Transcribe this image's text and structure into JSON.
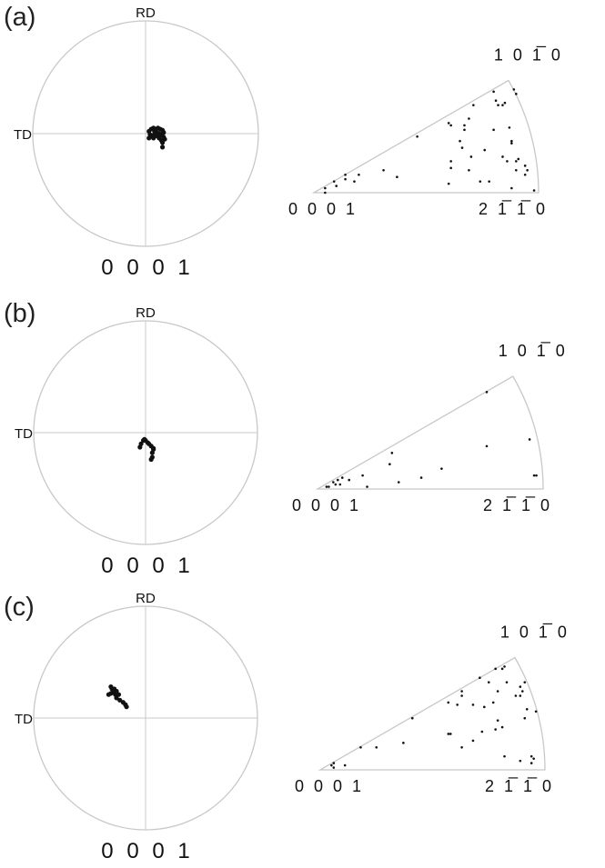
{
  "panels": [
    {
      "label": "(a)",
      "pole_figure": {
        "rd_label": "RD",
        "td_label": "TD",
        "pole_label": "0 0 0 1",
        "points": [
          [
            0.03,
            0.02
          ],
          [
            0.05,
            0.04
          ],
          [
            0.07,
            0.05
          ],
          [
            0.09,
            0.04
          ],
          [
            0.11,
            0.05
          ],
          [
            0.13,
            0.04
          ],
          [
            0.15,
            0.03
          ],
          [
            0.16,
            0.01
          ],
          [
            0.04,
            -0.01
          ],
          [
            0.06,
            -0.02
          ],
          [
            0.08,
            0.0
          ],
          [
            0.1,
            0.01
          ],
          [
            0.12,
            0.0
          ],
          [
            0.14,
            -0.01
          ],
          [
            0.16,
            -0.03
          ],
          [
            0.17,
            -0.05
          ],
          [
            0.03,
            -0.04
          ],
          [
            0.07,
            -0.04
          ],
          [
            0.12,
            -0.04
          ],
          [
            0.14,
            -0.06
          ],
          [
            0.15,
            -0.08
          ],
          [
            0.08,
            0.02
          ],
          [
            0.1,
            -0.02
          ],
          [
            0.15,
            -0.12
          ]
        ]
      },
      "ipf": {
        "apex_label": "0 0 0 1",
        "right_label": "2 1̅ 1̅ 0",
        "top_label": "1 0 1̅ 0",
        "points": [
          [
            0.8,
            0.45
          ],
          [
            0.89,
            0.46
          ],
          [
            0.9,
            0.44
          ],
          [
            0.81,
            0.41
          ],
          [
            0.82,
            0.39
          ],
          [
            0.84,
            0.39
          ],
          [
            0.85,
            0.4
          ],
          [
            0.71,
            0.39
          ],
          [
            0.69,
            0.33
          ],
          [
            0.67,
            0.3
          ],
          [
            0.67,
            0.28
          ],
          [
            0.6,
            0.31
          ],
          [
            0.61,
            0.3
          ],
          [
            0.46,
            0.25
          ],
          [
            0.87,
            0.29
          ],
          [
            0.8,
            0.28
          ],
          [
            0.65,
            0.23
          ],
          [
            0.66,
            0.2
          ],
          [
            0.76,
            0.19
          ],
          [
            0.88,
            0.23
          ],
          [
            0.88,
            0.22
          ],
          [
            0.84,
            0.16
          ],
          [
            0.86,
            0.14
          ],
          [
            0.9,
            0.14
          ],
          [
            0.91,
            0.15
          ],
          [
            0.7,
            0.16
          ],
          [
            0.61,
            0.14
          ],
          [
            0.61,
            0.11
          ],
          [
            0.69,
            0.1
          ],
          [
            0.94,
            0.12
          ],
          [
            0.95,
            0.1
          ],
          [
            0.94,
            0.08
          ],
          [
            0.9,
            0.1
          ],
          [
            0.31,
            0.1
          ],
          [
            0.37,
            0.07
          ],
          [
            0.2,
            0.08
          ],
          [
            0.14,
            0.08
          ],
          [
            0.14,
            0.06
          ],
          [
            0.18,
            0.05
          ],
          [
            0.09,
            0.05
          ],
          [
            0.1,
            0.03
          ],
          [
            0.05,
            0.02
          ],
          [
            0.05,
            0.0
          ],
          [
            0.6,
            0.04
          ],
          [
            0.74,
            0.05
          ],
          [
            0.78,
            0.05
          ],
          [
            0.88,
            0.02
          ],
          [
            0.98,
            0.01
          ]
        ]
      }
    },
    {
      "label": "(b)",
      "pole_figure": {
        "rd_label": "RD",
        "td_label": "TD",
        "pole_label": "0 0 0 1",
        "points": [
          [
            -0.05,
            -0.13
          ],
          [
            -0.04,
            -0.1
          ],
          [
            -0.02,
            -0.07
          ],
          [
            -0.01,
            -0.06
          ],
          [
            0.0,
            -0.07
          ],
          [
            0.02,
            -0.09
          ],
          [
            0.03,
            -0.1
          ],
          [
            0.05,
            -0.12
          ],
          [
            0.07,
            -0.14
          ],
          [
            0.07,
            -0.15
          ],
          [
            0.06,
            -0.18
          ],
          [
            0.06,
            -0.22
          ],
          [
            0.05,
            -0.24
          ]
        ]
      },
      "ipf": {
        "apex_label": "0 0 0 1",
        "right_label": "2 1̅ 1̅ 0",
        "top_label": "1 0 1̅ 0",
        "points": [
          [
            0.75,
            0.43
          ],
          [
            0.94,
            0.22
          ],
          [
            0.75,
            0.19
          ],
          [
            0.33,
            0.16
          ],
          [
            0.32,
            0.11
          ],
          [
            0.55,
            0.09
          ],
          [
            0.46,
            0.05
          ],
          [
            0.36,
            0.03
          ],
          [
            0.22,
            0.01
          ],
          [
            0.2,
            0.06
          ],
          [
            0.14,
            0.04
          ],
          [
            0.11,
            0.05
          ],
          [
            0.09,
            0.04
          ],
          [
            0.07,
            0.03
          ],
          [
            0.08,
            0.02
          ],
          [
            0.1,
            0.02
          ],
          [
            0.05,
            0.01
          ],
          [
            0.04,
            0.01
          ],
          [
            0.96,
            0.06
          ],
          [
            0.97,
            0.06
          ]
        ]
      }
    },
    {
      "label": "(c)",
      "pole_figure": {
        "rd_label": "RD",
        "td_label": "TD",
        "pole_label": "0 0 0 1",
        "points": [
          [
            -0.31,
            0.28
          ],
          [
            -0.3,
            0.26
          ],
          [
            -0.28,
            0.26
          ],
          [
            -0.29,
            0.23
          ],
          [
            -0.26,
            0.24
          ],
          [
            -0.24,
            0.21
          ],
          [
            -0.26,
            0.18
          ],
          [
            -0.23,
            0.16
          ],
          [
            -0.2,
            0.14
          ],
          [
            -0.18,
            0.12
          ],
          [
            -0.17,
            0.1
          ],
          [
            -0.33,
            0.21
          ],
          [
            -0.31,
            0.22
          ],
          [
            -0.27,
            0.21
          ]
        ]
      },
      "ipf": {
        "apex_label": "0 0 0 1",
        "right_label": "2 1̅ 1̅ 0",
        "top_label": "1 0 1̅ 0",
        "points": [
          [
            0.78,
            0.45
          ],
          [
            0.81,
            0.45
          ],
          [
            0.82,
            0.46
          ],
          [
            0.71,
            0.41
          ],
          [
            0.75,
            0.39
          ],
          [
            0.83,
            0.39
          ],
          [
            0.91,
            0.39
          ],
          [
            0.63,
            0.35
          ],
          [
            0.63,
            0.33
          ],
          [
            0.79,
            0.35
          ],
          [
            0.89,
            0.37
          ],
          [
            0.9,
            0.35
          ],
          [
            0.87,
            0.33
          ],
          [
            0.89,
            0.33
          ],
          [
            0.57,
            0.3
          ],
          [
            0.61,
            0.29
          ],
          [
            0.68,
            0.29
          ],
          [
            0.73,
            0.28
          ],
          [
            0.77,
            0.3
          ],
          [
            0.92,
            0.27
          ],
          [
            0.96,
            0.26
          ],
          [
            0.91,
            0.23
          ],
          [
            0.41,
            0.23
          ],
          [
            0.79,
            0.22
          ],
          [
            0.81,
            0.19
          ],
          [
            0.78,
            0.18
          ],
          [
            0.72,
            0.17
          ],
          [
            0.57,
            0.16
          ],
          [
            0.58,
            0.16
          ],
          [
            0.68,
            0.13
          ],
          [
            0.37,
            0.12
          ],
          [
            0.63,
            0.1
          ],
          [
            0.25,
            0.1
          ],
          [
            0.18,
            0.1
          ],
          [
            0.82,
            0.06
          ],
          [
            0.89,
            0.04
          ],
          [
            0.94,
            0.06
          ],
          [
            0.95,
            0.05
          ],
          [
            0.94,
            0.03
          ],
          [
            0.11,
            0.02
          ],
          [
            0.05,
            0.02
          ],
          [
            0.06,
            0.03
          ],
          [
            0.06,
            0.01
          ]
        ]
      }
    }
  ],
  "colors": {
    "frame": "#c8c8c8",
    "points": "#111111"
  }
}
